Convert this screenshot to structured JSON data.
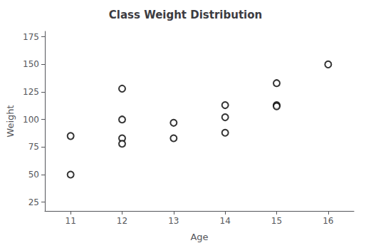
{
  "chart_data": {
    "type": "scatter",
    "title": "Class Weight Distribution",
    "xlabel": "Age",
    "ylabel": "Weight",
    "x": [
      11,
      11,
      12,
      12,
      12,
      12,
      13,
      13,
      14,
      14,
      14,
      15,
      15,
      15,
      16
    ],
    "values": [
      85,
      50,
      128,
      100,
      83,
      78,
      97,
      83,
      113,
      102,
      88,
      133,
      113,
      112,
      150
    ],
    "xlim": [
      10.5,
      16.5
    ],
    "ylim": [
      17,
      180
    ],
    "xticks": [
      11,
      12,
      13,
      14,
      15,
      16
    ],
    "yticks": [
      25,
      50,
      75,
      100,
      125,
      150,
      175
    ],
    "grid": false,
    "marker": "o",
    "color": "black"
  }
}
